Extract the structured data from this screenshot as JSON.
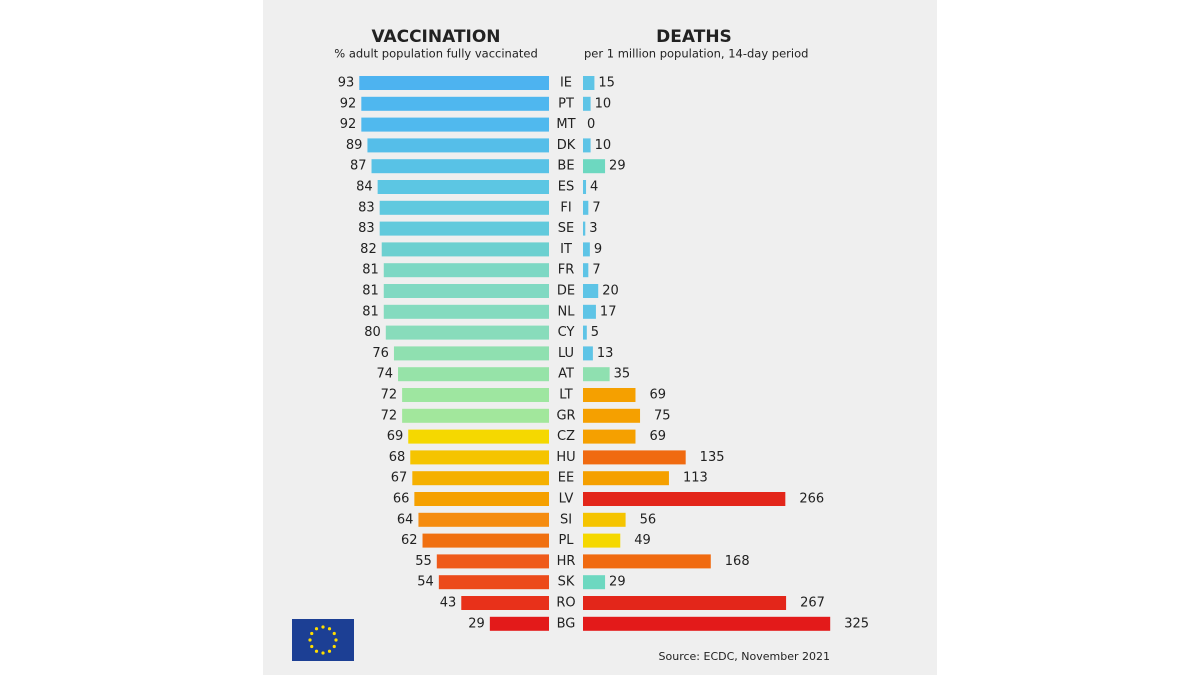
{
  "chart_data": {
    "type": "butterfly",
    "categories": [
      "IE",
      "PT",
      "MT",
      "DK",
      "BE",
      "ES",
      "FI",
      "SE",
      "IT",
      "FR",
      "DE",
      "NL",
      "CY",
      "LU",
      "AT",
      "LT",
      "GR",
      "CZ",
      "HU",
      "EE",
      "LV",
      "SI",
      "PL",
      "HR",
      "SK",
      "RO",
      "BG"
    ],
    "series": [
      {
        "name": "VACCINATION",
        "subtitle": "% adult population fully vaccinated",
        "xlim": [
          0,
          100
        ],
        "values": [
          93,
          92,
          92,
          89,
          87,
          84,
          83,
          83,
          82,
          81,
          81,
          81,
          80,
          76,
          74,
          72,
          72,
          69,
          68,
          67,
          66,
          64,
          62,
          55,
          54,
          43,
          29
        ],
        "colors": [
          "#4db3f0",
          "#4fb7ef",
          "#50b9ee",
          "#55bee9",
          "#58c2e6",
          "#5cc6e3",
          "#60c9df",
          "#62cadc",
          "#6cd0d0",
          "#7dd8c4",
          "#80d9c2",
          "#84dbbf",
          "#88dcbb",
          "#8fe0b0",
          "#96e3a8",
          "#9ee6a0",
          "#a2e79c",
          "#f5d800",
          "#f5c400",
          "#f5b000",
          "#f5a000",
          "#f58c10",
          "#f07010",
          "#ef5a1a",
          "#ec4a1a",
          "#e8311a",
          "#e31a1a"
        ]
      },
      {
        "name": "DEATHS",
        "subtitle": "per 1 million population, 14-day period",
        "xlim": [
          0,
          330
        ],
        "values": [
          15,
          10,
          0,
          10,
          29,
          4,
          7,
          3,
          9,
          7,
          20,
          17,
          5,
          13,
          35,
          69,
          75,
          69,
          135,
          113,
          266,
          56,
          49,
          168,
          29,
          267,
          325
        ],
        "colors": [
          "#5ec4e6",
          "#5ec4e6",
          "#5ec4e6",
          "#5ec4e6",
          "#6dd8c0",
          "#5ec4e6",
          "#5ec4e6",
          "#5ec4e6",
          "#5ec4e6",
          "#5ec4e6",
          "#5ec4e6",
          "#5ec4e6",
          "#5ec4e6",
          "#5ec4e6",
          "#8fe0b0",
          "#f5a000",
          "#f5a000",
          "#f5a000",
          "#f06a10",
          "#f5a000",
          "#e3261a",
          "#f5c400",
          "#f5d800",
          "#f06a10",
          "#6dd8c0",
          "#e3261a",
          "#e31a1a"
        ]
      }
    ],
    "source": "Source: ECDC, November 2021"
  }
}
